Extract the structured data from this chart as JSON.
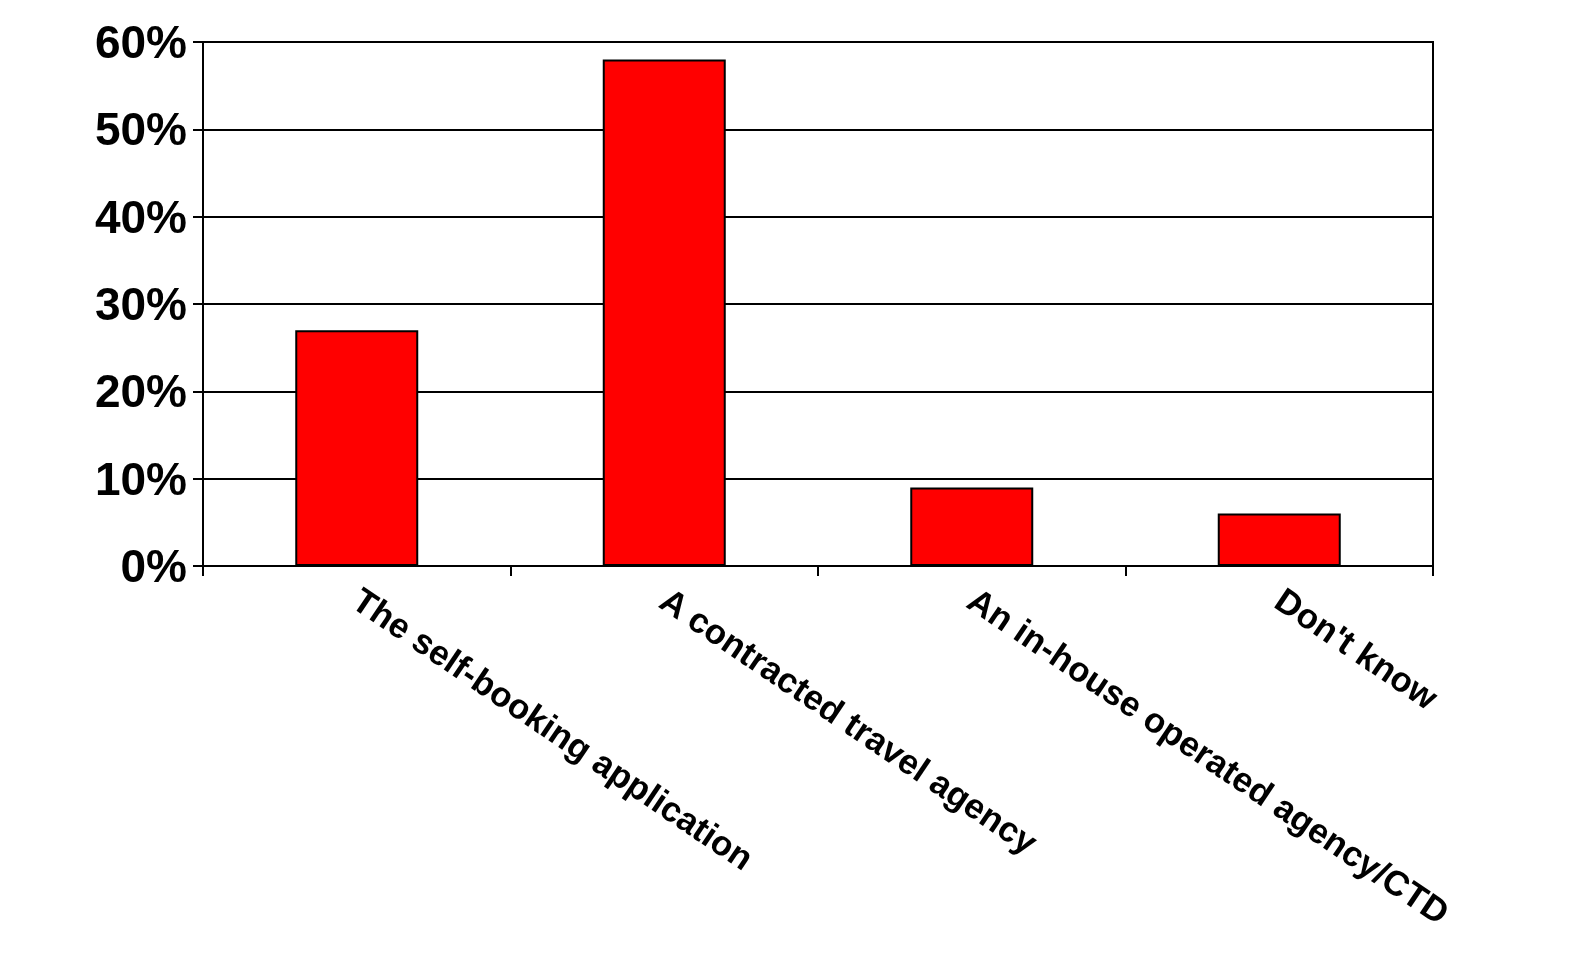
{
  "chart_data": {
    "type": "bar",
    "categories": [
      "The self-booking application",
      "A contracted travel agency",
      "An in-house operated agency/CTD",
      "Don't know"
    ],
    "values": [
      27,
      58,
      9,
      6
    ],
    "color": "#ff0000",
    "ylim": [
      0,
      60
    ],
    "yticks": [
      {
        "value": 0,
        "label": "0%"
      },
      {
        "value": 10,
        "label": "10%"
      },
      {
        "value": 20,
        "label": "20%"
      },
      {
        "value": 30,
        "label": "30%"
      },
      {
        "value": 40,
        "label": "40%"
      },
      {
        "value": 50,
        "label": "50%"
      },
      {
        "value": 60,
        "label": "60%"
      }
    ],
    "grid": "y"
  }
}
